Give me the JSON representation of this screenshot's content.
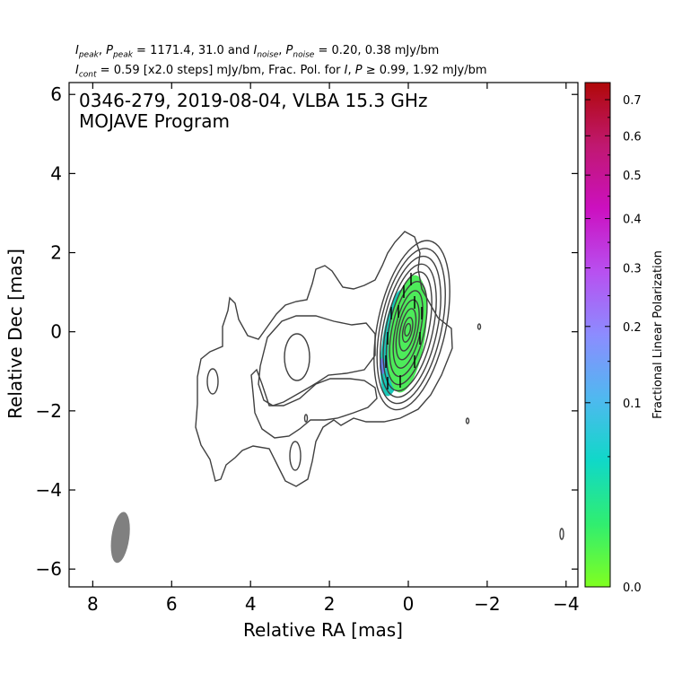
{
  "header": {
    "line1": {
      "i_label": "I",
      "i_sub": "peak",
      "p_label": "P",
      "p_sub": "peak",
      "eq1": " = 1171.4, 31.0 and ",
      "in_label": "I",
      "in_sub": "noise",
      "pn_label": "P",
      "pn_sub": "noise",
      "eq2": " = 0.20, 0.38 mJy/bm",
      "sep": ", "
    },
    "line2": {
      "ic_label": "I",
      "ic_sub": "cont",
      "text1": " = 0.59 [x2.0 steps] mJy/bm, Frac. Pol. for ",
      "i_label": "I",
      "sep": ", ",
      "p_label": "P",
      "text2": " ≥ 0.99, 1.92 mJy/bm"
    }
  },
  "chart_data": {
    "type": "contour",
    "source_label": "0346-279, 2019-08-04, VLBA 15.3 GHz",
    "program_label": "MOJAVE Program",
    "xlabel": "Relative RA [mas]",
    "ylabel": "Relative Dec [mas]",
    "xlim": [
      8.6,
      -4.3
    ],
    "ylim": [
      -6.45,
      6.3
    ],
    "x_ticks": [
      8,
      6,
      4,
      2,
      0,
      -2,
      -4
    ],
    "x_tick_labels": [
      "8",
      "6",
      "4",
      "2",
      "0",
      "−2",
      "−4"
    ],
    "y_ticks": [
      6,
      4,
      2,
      0,
      -2,
      -4,
      -6
    ],
    "y_tick_labels": [
      "6",
      "4",
      "2",
      "0",
      "−2",
      "−4",
      "−6"
    ],
    "colorbar": {
      "label": "Fractional Linear Polarization",
      "range": [
        0.0,
        0.75
      ],
      "ticks": [
        0.0,
        0.1,
        0.2,
        0.3,
        0.4,
        0.5,
        0.6,
        0.7
      ],
      "tick_labels": [
        "0.0",
        "0.1",
        "0.2",
        "0.3",
        "0.4",
        "0.5",
        "0.6",
        "0.7"
      ],
      "colors": [
        "#80ff20",
        "#30ee70",
        "#10d8c8",
        "#50b8f0",
        "#8c8cff",
        "#b850f0",
        "#cc10c0",
        "#c01870",
        "#b00808"
      ]
    },
    "beam": {
      "center": [
        7.3,
        -5.2
      ],
      "major_axis": 1.3,
      "minor_axis": 0.45,
      "pa_deg": 8,
      "color": "#808080"
    },
    "core": {
      "center": [
        0.0,
        0.0
      ],
      "peak_mjy": 1171.4
    },
    "contour_color": "#404040",
    "pol_color_core": "#4dec5a",
    "pol_color_edge": "#18c8b8"
  }
}
